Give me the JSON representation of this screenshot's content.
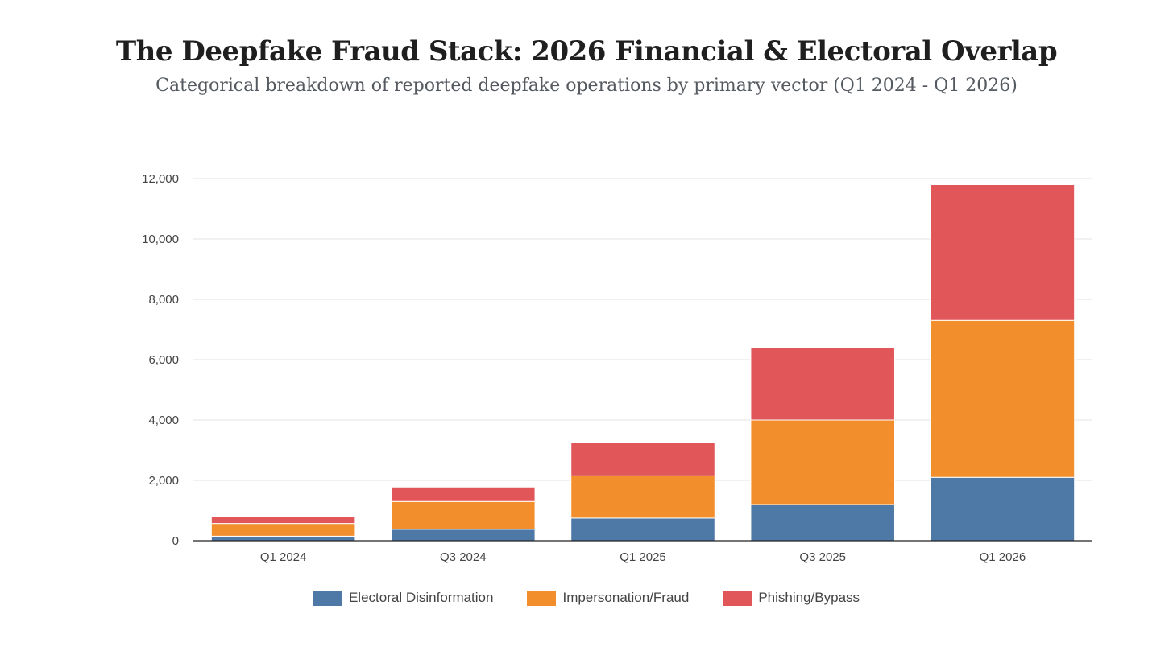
{
  "chart_data": {
    "type": "bar",
    "stacked": true,
    "title": "The Deepfake Fraud Stack: 2026 Financial & Electoral Overlap",
    "subtitle": "Categorical breakdown of reported deepfake operations by primary vector (Q1 2024 - Q1 2026)",
    "categories": [
      "Q1 2024",
      "Q3 2024",
      "Q1 2025",
      "Q3 2025",
      "Q1 2026"
    ],
    "series": [
      {
        "name": "Electoral Disinformation",
        "color": "#4e79a7",
        "values": [
          150,
          380,
          750,
          1200,
          2100
        ]
      },
      {
        "name": "Impersonation/Fraud",
        "color": "#f28e2b",
        "values": [
          420,
          920,
          1400,
          2800,
          5200
        ]
      },
      {
        "name": "Phishing/Bypass",
        "color": "#e15759",
        "values": [
          230,
          480,
          1100,
          2400,
          4500
        ]
      }
    ],
    "ylim": [
      0,
      12000
    ],
    "yticks": [
      0,
      2000,
      4000,
      6000,
      8000,
      10000,
      12000
    ],
    "ytick_labels": [
      "0",
      "2,000",
      "4,000",
      "6,000",
      "8,000",
      "10,000",
      "12,000"
    ],
    "xlabel": "",
    "ylabel": "",
    "grid": true,
    "legend_position": "bottom"
  }
}
